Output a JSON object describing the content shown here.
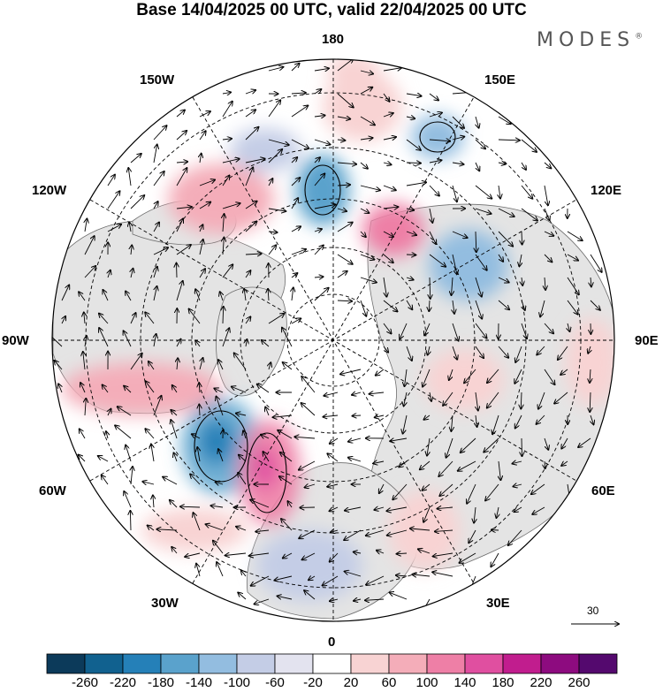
{
  "title": "Base 14/04/2025 00 UTC, valid 22/04/2025 00 UTC",
  "brand": "MODES",
  "brand_mark": "®",
  "longitude_labels": {
    "lon_180": "180",
    "lon_150E": "150E",
    "lon_120E": "120E",
    "lon_90E": "90E",
    "lon_60E": "60E",
    "lon_30E": "30E",
    "lon_0": "0",
    "lon_30W": "30W",
    "lon_60W": "60W",
    "lon_90W": "90W",
    "lon_120W": "120W",
    "lon_150W": "150W"
  },
  "reference_vector": {
    "label": "30",
    "magnitude": 30
  },
  "colorbar": {
    "ticks": [
      "-260",
      "-220",
      "-180",
      "-140",
      "-100",
      "-60",
      "-20",
      "20",
      "60",
      "100",
      "140",
      "180",
      "220",
      "260"
    ],
    "colors": [
      "#0c3a5a",
      "#11618f",
      "#2580b8",
      "#5aa2cc",
      "#93bde0",
      "#c4cde6",
      "#e3e3ef",
      "#ffffff",
      "#f8d3d3",
      "#f4adb9",
      "#ee7fa6",
      "#e04fa0",
      "#c11d8e",
      "#8d0b7f",
      "#54096e"
    ]
  },
  "map": {
    "projection": "north polar stereographic",
    "center": "North Pole",
    "anomaly_features": [
      {
        "sign": "negative",
        "region": "North Atlantic south of Greenland",
        "level": -180
      },
      {
        "sign": "positive",
        "region": "western North Atlantic",
        "level": 180
      },
      {
        "sign": "negative",
        "region": "Beaufort / Chukchi Sea",
        "level": -180
      },
      {
        "sign": "positive",
        "region": "East Siberia",
        "level": 180
      },
      {
        "sign": "negative",
        "region": "Kamchatka / North Pacific",
        "level": -140
      },
      {
        "sign": "positive",
        "region": "Alaska / Bering",
        "level": 100
      },
      {
        "sign": "positive",
        "region": "Canada / Hudson Bay",
        "level": 100
      },
      {
        "sign": "negative",
        "region": "Central Siberia",
        "level": -100
      },
      {
        "sign": "positive",
        "region": "western Siberia",
        "level": 60
      },
      {
        "sign": "positive",
        "region": "Eastern Europe / Black Sea",
        "level": 60
      },
      {
        "sign": "negative",
        "region": "Western Europe / Mediterranean",
        "level": -60
      }
    ]
  }
}
